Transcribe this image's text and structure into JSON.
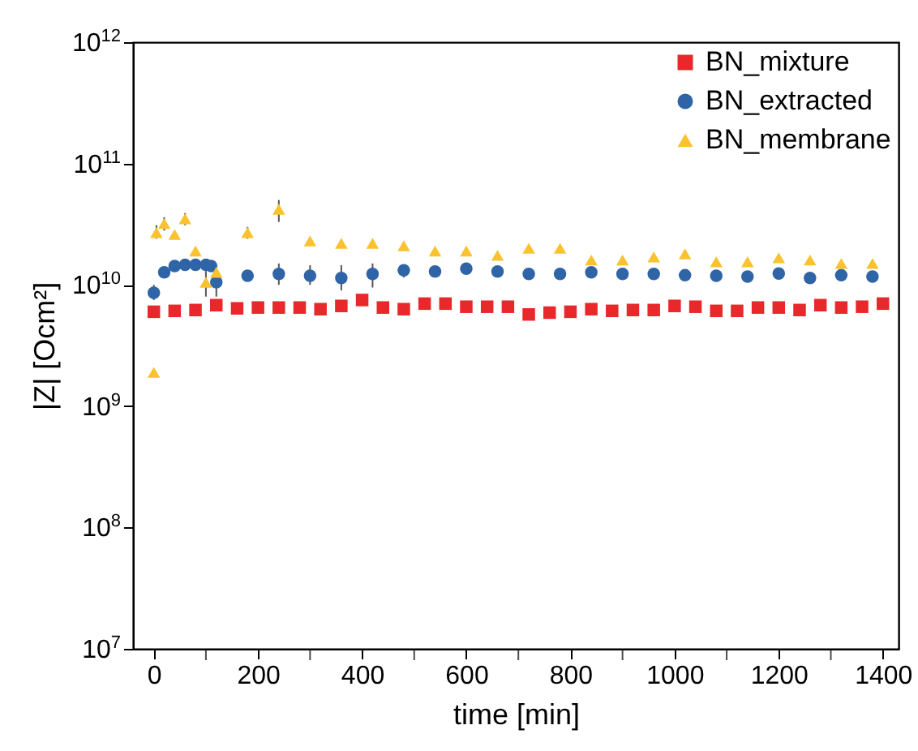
{
  "chart_data": {
    "type": "scatter",
    "xlabel": "time [min]",
    "ylabel": "|Z| [Ocm²]",
    "log": "y",
    "legend": "top right",
    "grid": false,
    "xlim": [
      -40,
      1430
    ],
    "xticks": [
      0,
      {
        "value": 100,
        "label": null
      },
      200,
      {
        "value": 300,
        "label": null
      },
      400,
      {
        "value": 500,
        "label": null
      },
      600,
      {
        "value": 700,
        "label": null
      },
      800,
      {
        "value": 900,
        "label": null
      },
      1000,
      {
        "value": 1100,
        "label": null
      },
      1200,
      {
        "value": 1300,
        "label": null
      },
      1400
    ],
    "ylim": [
      10000000,
      1000000000000
    ],
    "yticks": [
      {
        "value": 10000000,
        "label": "10$^{7}$"
      },
      {
        "value": 100000000,
        "label": "10$^{8}$"
      },
      {
        "value": 1000000000,
        "label": "10$^{9}$"
      },
      {
        "value": 10000000000,
        "label": "10$^{10}$"
      },
      {
        "value": 100000000000,
        "label": "10$^{11}$"
      },
      {
        "value": 1000000000000,
        "label": "10$^{12}$"
      }
    ],
    "series": [
      {
        "name": "BN_mixture",
        "color": "#e8282b",
        "marker": "square",
        "x": [
          0,
          40,
          80,
          120,
          160,
          200,
          240,
          280,
          320,
          360,
          400,
          440,
          480,
          520,
          560,
          600,
          640,
          680,
          720,
          760,
          800,
          840,
          880,
          920,
          960,
          1000,
          1040,
          1080,
          1120,
          1160,
          1200,
          1240,
          1280,
          1320,
          1360,
          1400
        ],
        "values": [
          6000000000.0,
          6100000000.0,
          6200000000.0,
          6800000000.0,
          6400000000.0,
          6500000000.0,
          6500000000.0,
          6500000000.0,
          6300000000.0,
          6700000000.0,
          7500000000.0,
          6500000000.0,
          6300000000.0,
          7000000000.0,
          7000000000.0,
          6600000000.0,
          6600000000.0,
          6600000000.0,
          5700000000.0,
          5900000000.0,
          6000000000.0,
          6300000000.0,
          6100000000.0,
          6200000000.0,
          6200000000.0,
          6700000000.0,
          6600000000.0,
          6100000000.0,
          6100000000.0,
          6500000000.0,
          6500000000.0,
          6200000000.0,
          6800000000.0,
          6500000000.0,
          6600000000.0,
          7000000000.0
        ]
      },
      {
        "name": "BN_extracted",
        "color": "#2f64a6",
        "marker": "circle",
        "x": [
          0,
          20,
          40,
          60,
          80,
          100,
          110,
          120,
          180,
          240,
          300,
          360,
          420,
          480,
          540,
          600,
          660,
          720,
          780,
          840,
          900,
          960,
          1020,
          1080,
          1140,
          1200,
          1260,
          1320,
          1380
        ],
        "values": [
          8600000000.0,
          12700000000.0,
          14300000000.0,
          14600000000.0,
          14600000000.0,
          14600000000.0,
          14300000000.0,
          10500000000.0,
          11900000000.0,
          12300000000.0,
          11900000000.0,
          11400000000.0,
          12300000000.0,
          13200000000.0,
          12900000000.0,
          13600000000.0,
          12900000000.0,
          12300000000.0,
          12300000000.0,
          12700000000.0,
          12300000000.0,
          12300000000.0,
          12000000000.0,
          11900000000.0,
          11700000000.0,
          12400000000.0,
          11400000000.0,
          12000000000.0,
          11700000000.0
        ],
        "errors": [
          [
            7500000000.0,
            10000000000.0
          ],
          null,
          null,
          null,
          null,
          null,
          null,
          [
            8000000000.0,
            13000000000.0
          ],
          null,
          [
            10000000000.0,
            15000000000.0
          ],
          [
            10000000000.0,
            14500000000.0
          ],
          [
            9000000000.0,
            14500000000.0
          ],
          [
            9500000000.0,
            15000000000.0
          ],
          [
            11500000000.0,
            14500000000.0
          ],
          null,
          null,
          null,
          null,
          null,
          null,
          null,
          null,
          null,
          null,
          null,
          null,
          null,
          null,
          null
        ]
      },
      {
        "name": "BN_membrane",
        "color": "#f9c22e",
        "marker": "triangle",
        "x": [
          0,
          5,
          20,
          40,
          60,
          80,
          100,
          120,
          180,
          240,
          300,
          360,
          420,
          480,
          540,
          600,
          660,
          720,
          780,
          840,
          900,
          960,
          1020,
          1080,
          1140,
          1200,
          1260,
          1320,
          1380
        ],
        "values": [
          1900000000.0,
          27000000000.0,
          32000000000.0,
          26000000000.0,
          35000000000.0,
          19000000000.0,
          10500000000.0,
          12700000000.0,
          27000000000.0,
          42000000000.0,
          23000000000.0,
          22000000000.0,
          22000000000.0,
          21000000000.0,
          19000000000.0,
          19000000000.0,
          17500000000.0,
          20000000000.0,
          20000000000.0,
          16000000000.0,
          16000000000.0,
          17000000000.0,
          18000000000.0,
          15500000000.0,
          15500000000.0,
          16700000000.0,
          16000000000.0,
          15000000000.0,
          15000000000.0
        ],
        "errors": [
          null,
          [
            24000000000.0,
            31000000000.0
          ],
          [
            28000000000.0,
            36000000000.0
          ],
          null,
          [
            31000000000.0,
            39000000000.0
          ],
          null,
          [
            8000000000.0,
            13000000000.0
          ],
          null,
          [
            24000000000.0,
            30000000000.0
          ],
          [
            33000000000.0,
            50000000000.0
          ],
          null,
          null,
          null,
          null,
          null,
          null,
          null,
          null,
          null,
          null,
          null,
          null,
          null,
          null,
          null,
          null,
          null,
          null,
          null
        ]
      }
    ]
  }
}
